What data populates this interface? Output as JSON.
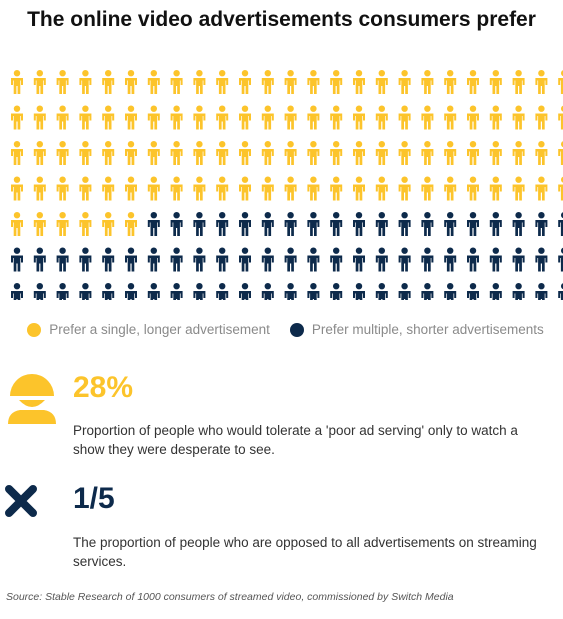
{
  "title": "The online video advertisements consumers prefer",
  "chart_data": {
    "type": "pictogram",
    "unit": "person icon",
    "columns": 25,
    "rows": 7,
    "series": [
      {
        "name": "Prefer a single, longer advertisement",
        "count": 106,
        "color": "#fcc42b"
      },
      {
        "name": "Prefer multiple, shorter advertisements",
        "count": 69,
        "color": "#0d2a4b"
      }
    ],
    "legend_position": "bottom"
  },
  "legend": [
    {
      "label": "Prefer a single, longer advertisement",
      "color": "#fcc42b"
    },
    {
      "label": "Prefer multiple, shorter advertisements",
      "color": "#0d2a4b"
    }
  ],
  "stats": [
    {
      "icon": "smiley-face-icon",
      "value": "28%",
      "value_color": "#fcc42b",
      "text": "Proportion of people who would tolerate a 'poor ad serving' only to watch a show they were desperate to see."
    },
    {
      "icon": "cross-x-icon",
      "value": "1/5",
      "value_color": "#0d2a4b",
      "text": "The proportion of people who are opposed to all advertisements on streaming services."
    }
  ],
  "source": "Source:  Stable Research of 1000 consumers of streamed video, commissioned by Switch Media"
}
